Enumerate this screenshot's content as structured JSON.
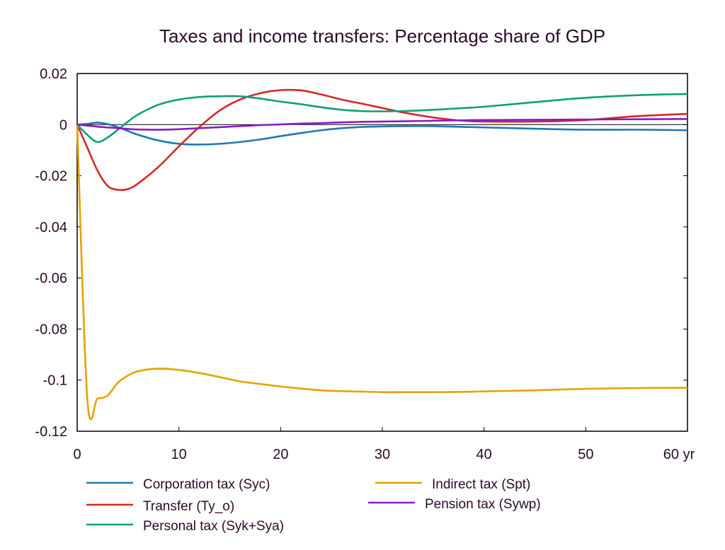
{
  "chart_data": {
    "type": "line",
    "title": "Taxes and income transfers: Percentage share of GDP",
    "x_unit": "yr",
    "xlim": [
      0,
      60
    ],
    "ylim": [
      -0.12,
      0.02
    ],
    "x_ticks": [
      0,
      10,
      20,
      30,
      40,
      50,
      60
    ],
    "y_ticks": [
      0.02,
      0,
      -0.02,
      -0.04,
      -0.06,
      -0.08,
      -0.1,
      -0.12
    ],
    "x_tick_labels": [
      "0",
      "10",
      "20",
      "30",
      "40",
      "50",
      "60 yr"
    ],
    "y_tick_labels": [
      "0.02",
      "0",
      "-0.02",
      "-0.04",
      "-0.06",
      "-0.08",
      "-0.1",
      "-0.12"
    ],
    "zero_line": true,
    "legend_position": "bottom",
    "x": [
      0,
      1,
      2,
      3,
      4,
      5,
      6,
      8,
      10,
      12,
      14,
      16,
      18,
      20,
      22,
      24,
      26,
      28,
      30,
      32,
      35,
      38,
      40,
      45,
      50,
      55,
      60
    ],
    "series": [
      {
        "name": "Corporation tax (Syc)",
        "color": "#1f77b4",
        "values": [
          0,
          0.0003,
          0.0008,
          0.0002,
          -0.001,
          -0.0025,
          -0.004,
          -0.0062,
          -0.0075,
          -0.0078,
          -0.0075,
          -0.0068,
          -0.0058,
          -0.0045,
          -0.0033,
          -0.0022,
          -0.0014,
          -0.0009,
          -0.0007,
          -0.0006,
          -0.0006,
          -0.0009,
          -0.0011,
          -0.0016,
          -0.002,
          -0.002,
          -0.0022
        ]
      },
      {
        "name": "Transfer (Ty_o)",
        "color": "#d62728",
        "values": [
          0,
          -0.009,
          -0.018,
          -0.024,
          -0.0255,
          -0.0252,
          -0.023,
          -0.0165,
          -0.0085,
          -0.001,
          0.0055,
          0.0098,
          0.0123,
          0.0135,
          0.0134,
          0.0118,
          0.0098,
          0.0082,
          0.0065,
          0.0048,
          0.0028,
          0.0015,
          0.0012,
          0.0012,
          0.0018,
          0.0033,
          0.0042
        ]
      },
      {
        "name": "Personal tax (Syk+Sya)",
        "color": "#0f9e76",
        "values": [
          0,
          -0.004,
          -0.0068,
          -0.005,
          -0.002,
          0.0012,
          0.004,
          0.0078,
          0.0098,
          0.0108,
          0.0111,
          0.0111,
          0.0102,
          0.009,
          0.008,
          0.0068,
          0.0058,
          0.0053,
          0.0052,
          0.0053,
          0.0058,
          0.0065,
          0.007,
          0.0088,
          0.0105,
          0.0115,
          0.012
        ]
      },
      {
        "name": "Indirect tax (Spt)",
        "color": "#e6a100",
        "values": [
          0,
          -0.1075,
          -0.1072,
          -0.106,
          -0.101,
          -0.0982,
          -0.0965,
          -0.0955,
          -0.096,
          -0.0972,
          -0.0988,
          -0.1005,
          -0.1015,
          -0.1025,
          -0.1033,
          -0.104,
          -0.1043,
          -0.1045,
          -0.1047,
          -0.1047,
          -0.1047,
          -0.1046,
          -0.1044,
          -0.104,
          -0.1034,
          -0.1031,
          -0.103
        ]
      },
      {
        "name": "Pension tax (Sywp)",
        "color": "#8a1bc4",
        "values": [
          0,
          -0.0004,
          -0.0008,
          -0.0011,
          -0.0014,
          -0.0017,
          -0.0019,
          -0.002,
          -0.0018,
          -0.0014,
          -0.001,
          -0.0006,
          -0.0002,
          0.0001,
          0.0004,
          0.0006,
          0.0009,
          0.0011,
          0.0012,
          0.0013,
          0.0015,
          0.0017,
          0.0018,
          0.0019,
          0.002,
          0.0021,
          0.0022
        ]
      }
    ]
  }
}
